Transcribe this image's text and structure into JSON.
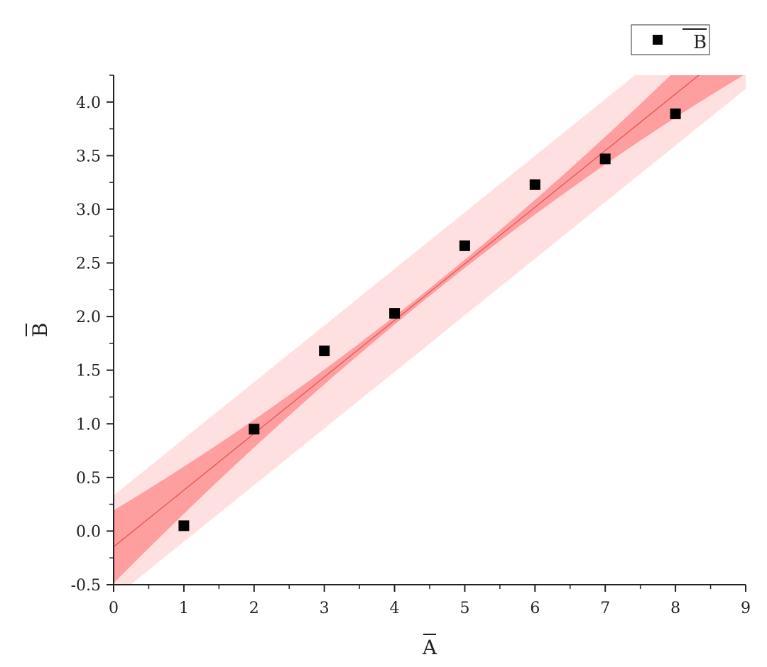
{
  "chart_data": {
    "type": "scatter",
    "title": "",
    "xlabel": "A",
    "ylabel": "B",
    "xlim": [
      0,
      9
    ],
    "ylim": [
      -0.5,
      4.25
    ],
    "xticks": [
      "0",
      "1",
      "2",
      "3",
      "4",
      "5",
      "6",
      "7",
      "8",
      "9"
    ],
    "yticks": [
      "-0.5",
      "0.0",
      "0.5",
      "1.0",
      "1.5",
      "2.0",
      "2.5",
      "3.0",
      "3.5",
      "4.0"
    ],
    "grid": false,
    "legend_position": "top-right",
    "series": [
      {
        "name": "B",
        "marker": "square",
        "color": "#000000",
        "x": [
          1,
          2,
          3,
          4,
          5,
          6,
          7,
          8
        ],
        "y": [
          0.05,
          0.95,
          1.68,
          2.03,
          2.66,
          3.23,
          3.47,
          3.89
        ]
      }
    ],
    "fit": {
      "type": "linear",
      "slope": 0.5277,
      "intercept": -0.1468,
      "line_color": "#e05050",
      "confidence_band_color": "#ff9e9e",
      "prediction_band_color": "#ffe0e0",
      "confidence_band_width": [
        0.035,
        0.34
      ],
      "prediction_band_width": 0.48
    }
  }
}
